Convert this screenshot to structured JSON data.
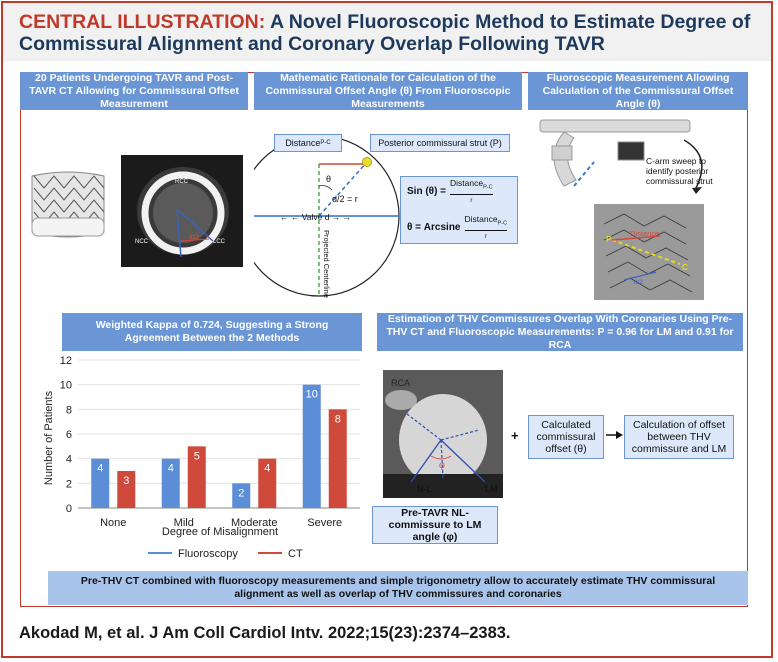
{
  "header": {
    "title_prefix": "CENTRAL ILLUSTRATION:",
    "title_rest": "A Novel Fluoroscopic Method to Estimate Degree of Commissural Alignment and Coronary Overlap Following TAVR"
  },
  "panels": {
    "p1": "20 Patients Undergoing TAVR and Post-TAVR CT Allowing for Commissural Offset Measurement",
    "p2": "Mathematic Rationale for Calculation of the Commissural Offset Angle (θ) From Fluoroscopic Measurements",
    "p3": "Fluoroscopic Measurement  Allowing Calculation of the Commissural Offset Angle (θ)",
    "p4": "Weighted Kappa of 0.724, Suggesting a Strong Agreement Between the 2 Methods",
    "p5": "Estimation of THV Commissures Overlap With Coronaries Using Pre-THV CT and Fluoroscopic Measurements: P = 0.96 for LM and 0.91 for RCA"
  },
  "ct1": {
    "rcc": "RCC",
    "ncc": "NCC",
    "lcc": "LCC",
    "theta": "θ12"
  },
  "math": {
    "distance": "Distance",
    "distance_sub": "P-C",
    "strut": "Posterior commissural strut (P)",
    "theta": "θ",
    "half": "d/2 = r",
    "valve_d": "← ← Valve d → →",
    "centerline": "Projected Centerline (C)",
    "sin_lhs": "Sin (θ) =",
    "frac_num": "Distance",
    "frac_sub": "P-C",
    "frac_den": "r",
    "arcsine_lhs": "θ = Arcsine"
  },
  "fluoro": {
    "sweep": "C-arm sweep to identify posterior commissural strut",
    "p": "P",
    "c": "C",
    "dist": "Distance",
    "half": "d/2"
  },
  "chart_data": {
    "type": "bar",
    "categories": [
      "None",
      "Mild",
      "Moderate",
      "Severe"
    ],
    "series": [
      {
        "name": "Fluoroscopy",
        "values": [
          4,
          4,
          2,
          10
        ],
        "color": "#5b8ed6"
      },
      {
        "name": "CT",
        "values": [
          3,
          5,
          4,
          8
        ],
        "color": "#d04a3c"
      }
    ],
    "xlabel": "Degree of Misalignment",
    "ylabel": "Number of Patients",
    "ylim": [
      0,
      12
    ],
    "yticks": [
      0,
      2,
      4,
      6,
      8,
      10,
      12
    ],
    "legend": "bottom"
  },
  "ct2": {
    "rca": "RCA",
    "nl": "N-L",
    "lm": "LM",
    "phi": "φ"
  },
  "flow": {
    "ct_caption": "Pre-TAVR NL-commissure to LM angle (φ)",
    "plus": "+",
    "offset": "Calculated commissural offset (θ)",
    "result": "Calculation of offset between THV commissure and LM"
  },
  "footer": {
    "summary": "Pre-THV CT combined with fluoroscopy measurements and simple trigonometry allow to accurately estimate THV commissural alignment as well as overlap of THV commissures and coronaries",
    "citation": "Akodad M, et al. J Am Coll Cardiol Intv. 2022;15(23):2374–2383."
  }
}
